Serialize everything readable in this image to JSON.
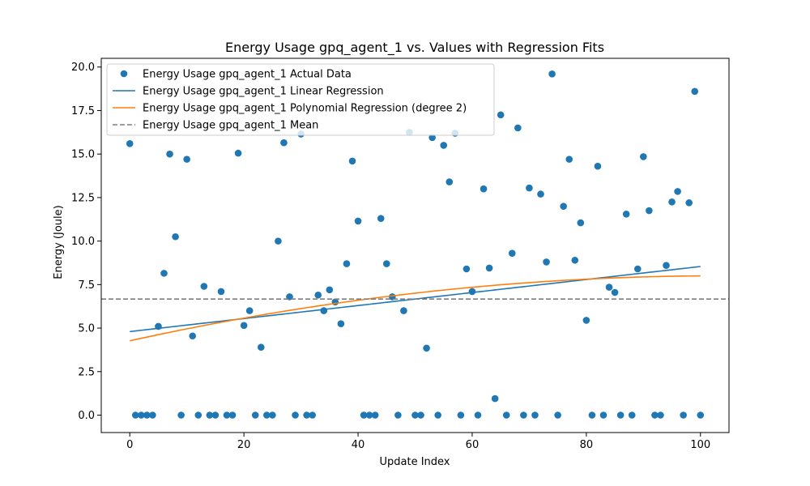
{
  "chart_data": {
    "type": "scatter",
    "title": "Energy Usage gpq_agent_1 vs. Values with Regression Fits",
    "xlabel": "Update Index",
    "ylabel": "Energy (Joule)",
    "xlim": [
      -5,
      105
    ],
    "ylim": [
      -1.0,
      20.5
    ],
    "x_ticks": [
      0,
      20,
      40,
      60,
      80,
      100
    ],
    "y_ticks": [
      0.0,
      2.5,
      5.0,
      7.5,
      10.0,
      12.5,
      15.0,
      17.5,
      20.0
    ],
    "x_tick_labels": [
      "0",
      "20",
      "40",
      "60",
      "80",
      "100"
    ],
    "y_tick_labels": [
      "0.0",
      "2.5",
      "5.0",
      "7.5",
      "10.0",
      "12.5",
      "15.0",
      "17.5",
      "20.0"
    ],
    "grid": false,
    "legend_position": "top-left",
    "series": [
      {
        "name": "Energy Usage gpq_agent_1 Actual Data",
        "kind": "scatter",
        "color": "#1f77b4",
        "x": [
          0,
          1,
          2,
          3,
          4,
          5,
          6,
          7,
          8,
          9,
          10,
          11,
          12,
          13,
          14,
          15,
          16,
          17,
          18,
          19,
          20,
          21,
          22,
          23,
          24,
          25,
          26,
          27,
          28,
          29,
          30,
          31,
          32,
          33,
          34,
          35,
          36,
          37,
          38,
          39,
          40,
          41,
          42,
          43,
          44,
          45,
          46,
          47,
          48,
          49,
          50,
          51,
          52,
          53,
          54,
          55,
          56,
          57,
          58,
          59,
          60,
          61,
          62,
          63,
          64,
          65,
          66,
          67,
          68,
          69,
          70,
          71,
          72,
          73,
          74,
          75,
          76,
          77,
          78,
          79,
          80,
          81,
          82,
          83,
          84,
          85,
          86,
          87,
          88,
          89,
          90,
          91,
          92,
          93,
          94,
          95,
          96,
          97,
          98,
          99,
          100
        ],
        "y": [
          15.6,
          0,
          0,
          0,
          0,
          5.1,
          8.15,
          15.0,
          10.25,
          0,
          14.7,
          4.55,
          0,
          7.4,
          0,
          0,
          7.1,
          0,
          0,
          15.05,
          5.15,
          6.0,
          0,
          3.9,
          0,
          0,
          10.0,
          15.65,
          6.8,
          0,
          16.15,
          0,
          0,
          6.9,
          6.0,
          7.2,
          6.5,
          5.25,
          8.7,
          14.6,
          11.15,
          0,
          0,
          0,
          11.3,
          8.7,
          6.8,
          0,
          6.0,
          16.25,
          0,
          0,
          3.85,
          15.95,
          0,
          15.5,
          13.4,
          16.2,
          0,
          8.4,
          7.1,
          0,
          13.0,
          8.45,
          0.95,
          17.25,
          0,
          9.3,
          16.5,
          0,
          13.05,
          0,
          12.7,
          8.8,
          19.6,
          0,
          12.0,
          14.7,
          8.9,
          11.05,
          5.45,
          0,
          14.3,
          0,
          7.35,
          7.05,
          0,
          11.55,
          0,
          8.4,
          14.85,
          11.75,
          0,
          0,
          8.6,
          12.25,
          12.85,
          0,
          12.2,
          18.6,
          0
        ]
      },
      {
        "name": "Energy Usage gpq_agent_1 Linear Regression",
        "kind": "line",
        "color": "#1f77b4",
        "intercept": 4.8,
        "slope": 0.0374
      },
      {
        "name": "Energy Usage gpq_agent_1 Polynomial Regression (degree 2)",
        "kind": "line",
        "color": "#ff7f0e",
        "coefficients": [
          4.27,
          0.0722,
          -0.000349
        ]
      },
      {
        "name": "Energy Usage gpq_agent_1 Mean",
        "kind": "hline",
        "color": "#7f7f7f",
        "y": 6.67
      }
    ]
  }
}
